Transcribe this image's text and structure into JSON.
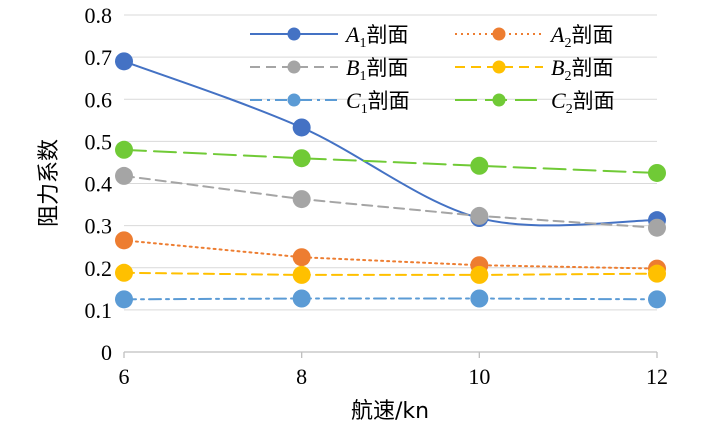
{
  "chart_data": {
    "type": "line",
    "x": [
      6,
      8,
      10,
      12
    ],
    "xlabel": "航速/kn",
    "ylabel": "阻力系数",
    "xlim": [
      6,
      12
    ],
    "ylim": [
      0,
      0.8
    ],
    "xticks": [
      "6",
      "8",
      "10",
      "12"
    ],
    "yticks": [
      "0",
      "0.1",
      "0.2",
      "0.3",
      "0.4",
      "0.5",
      "0.6",
      "0.7",
      "0.8"
    ],
    "grid": true,
    "legend_position": "top-right",
    "series": [
      {
        "name": "A1剖面",
        "letter": "A",
        "sub": "1",
        "suffix": "剖面",
        "color": "#4472c4",
        "dash": "solid",
        "smooth": true,
        "values": [
          0.69,
          0.533,
          0.318,
          0.313
        ]
      },
      {
        "name": "A2剖面",
        "letter": "A",
        "sub": "2",
        "suffix": "剖面",
        "color": "#ed7d31",
        "dash": "dot",
        "smooth": false,
        "values": [
          0.265,
          0.225,
          0.206,
          0.198
        ]
      },
      {
        "name": "B1剖面",
        "letter": "B",
        "sub": "1",
        "suffix": "剖面",
        "color": "#a5a5a5",
        "dash": "dash",
        "smooth": false,
        "values": [
          0.418,
          0.363,
          0.323,
          0.295
        ]
      },
      {
        "name": "B2剖面",
        "letter": "B",
        "sub": "2",
        "suffix": "剖面",
        "color": "#ffc000",
        "dash": "dash",
        "smooth": false,
        "values": [
          0.188,
          0.183,
          0.183,
          0.186
        ]
      },
      {
        "name": "C1剖面",
        "letter": "C",
        "sub": "1",
        "suffix": "剖面",
        "color": "#5b9bd5",
        "dash": "dashdot",
        "smooth": false,
        "values": [
          0.125,
          0.127,
          0.127,
          0.125
        ]
      },
      {
        "name": "C2剖面",
        "letter": "C",
        "sub": "2",
        "suffix": "剖面",
        "color": "#70ca36",
        "dash": "longdash",
        "smooth": false,
        "values": [
          0.48,
          0.46,
          0.442,
          0.425
        ]
      }
    ]
  }
}
